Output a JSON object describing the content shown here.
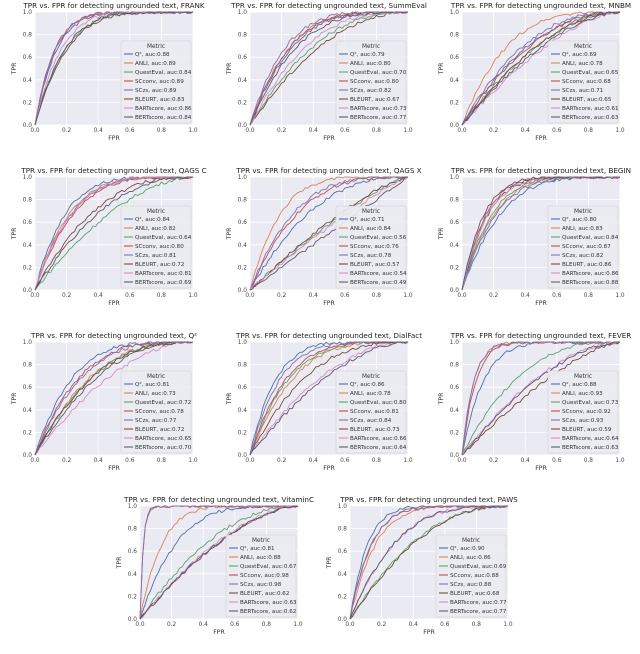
{
  "metric_label": "Metric",
  "colors": {
    "Q²": "#4c72b0",
    "ANLI": "#dd8452",
    "QuestEval": "#55a868",
    "SCconv": "#c44e52",
    "SCzs": "#8172b3",
    "BLEURT": "#7a4b3a",
    "BARTscore": "#da8bc3",
    "BERTscore": "#5a5a6e"
  },
  "chart_data": [
    {
      "type": "line",
      "title": "TPR vs. FPR for detecting ungrounded text, FRANK",
      "xlabel": "FPR",
      "ylabel": "TPR",
      "xlim": [
        0,
        1
      ],
      "ylim": [
        0,
        1
      ],
      "xticks": [
        "0.0",
        "0.2",
        "0.4",
        "0.6",
        "0.8",
        "1.0"
      ],
      "yticks": [
        "0.0",
        "0.2",
        "0.4",
        "0.6",
        "0.8",
        "1.0"
      ],
      "grid": true,
      "legend": "lower-right",
      "series": [
        {
          "name": "Q²",
          "label": "Q², auc:0.88",
          "auc": 0.88
        },
        {
          "name": "ANLI",
          "label": "ANLI, auc:0.89",
          "auc": 0.89
        },
        {
          "name": "QuestEval",
          "label": "QuestEval, auc:0.84",
          "auc": 0.84
        },
        {
          "name": "SCconv",
          "label": "SCconv, auc:0.89",
          "auc": 0.89
        },
        {
          "name": "SCzs",
          "label": "SCzs, auc:0.89",
          "auc": 0.89
        },
        {
          "name": "BLEURT",
          "label": "BLEURT, auc:0.83",
          "auc": 0.83
        },
        {
          "name": "BARTscore",
          "label": "BARTscore, auc:0.86",
          "auc": 0.86
        },
        {
          "name": "BERTscore",
          "label": "BERTscore, auc:0.84",
          "auc": 0.84
        }
      ]
    },
    {
      "type": "line",
      "title": "TPR vs. FPR for detecting ungrounded text, SummEval",
      "xlabel": "FPR",
      "ylabel": "TPR",
      "xlim": [
        0,
        1
      ],
      "ylim": [
        0,
        1
      ],
      "xticks": [
        "0.0",
        "0.2",
        "0.4",
        "0.6",
        "0.8",
        "1.0"
      ],
      "yticks": [
        "0.0",
        "0.2",
        "0.4",
        "0.6",
        "0.8",
        "1.0"
      ],
      "grid": true,
      "legend": "lower-right",
      "series": [
        {
          "name": "Q²",
          "label": "Q², auc:0.79",
          "auc": 0.79
        },
        {
          "name": "ANLI",
          "label": "ANLI, auc:0.80",
          "auc": 0.8
        },
        {
          "name": "QuestEval",
          "label": "QuestEval, auc:0.70",
          "auc": 0.7
        },
        {
          "name": "SCconv",
          "label": "SCconv, auc:0.80",
          "auc": 0.8
        },
        {
          "name": "SCzs",
          "label": "SCzs, auc:0.82",
          "auc": 0.82
        },
        {
          "name": "BLEURT",
          "label": "BLEURT, auc:0.67",
          "auc": 0.67
        },
        {
          "name": "BARTscore",
          "label": "BARTscore, auc:0.73",
          "auc": 0.73
        },
        {
          "name": "BERTscore",
          "label": "BERTscore, auc:0.77",
          "auc": 0.77
        }
      ]
    },
    {
      "type": "line",
      "title": "TPR vs. FPR for detecting ungrounded text, MNBM",
      "xlabel": "FPR",
      "ylabel": "TPR",
      "xlim": [
        0,
        1
      ],
      "ylim": [
        0,
        1
      ],
      "xticks": [
        "0.0",
        "0.2",
        "0.4",
        "0.6",
        "0.8",
        "1.0"
      ],
      "yticks": [
        "0.0",
        "0.2",
        "0.4",
        "0.6",
        "0.8",
        "1.0"
      ],
      "grid": true,
      "legend": "lower-right",
      "series": [
        {
          "name": "Q²",
          "label": "Q², auc:0.69",
          "auc": 0.69
        },
        {
          "name": "ANLI",
          "label": "ANLI, auc:0.78",
          "auc": 0.78
        },
        {
          "name": "QuestEval",
          "label": "QuestEval, auc:0.65",
          "auc": 0.65
        },
        {
          "name": "SCconv",
          "label": "SCconv, auc:0.68",
          "auc": 0.68
        },
        {
          "name": "SCzs",
          "label": "SCzs, auc:0.71",
          "auc": 0.71
        },
        {
          "name": "BLEURT",
          "label": "BLEURT, auc:0.65",
          "auc": 0.65
        },
        {
          "name": "BARTscore",
          "label": "BARTscore, auc:0.61",
          "auc": 0.61
        },
        {
          "name": "BERTscore",
          "label": "BERTscore, auc:0.63",
          "auc": 0.63
        }
      ]
    },
    {
      "type": "line",
      "title": "TPR vs. FPR for detecting ungrounded text, QAGS C",
      "xlabel": "FPR",
      "ylabel": "TPR",
      "xlim": [
        0,
        1
      ],
      "ylim": [
        0,
        1
      ],
      "xticks": [
        "0.0",
        "0.2",
        "0.4",
        "0.6",
        "0.8",
        "1.0"
      ],
      "yticks": [
        "0.0",
        "0.2",
        "0.4",
        "0.6",
        "0.8",
        "1.0"
      ],
      "grid": true,
      "legend": "lower-right",
      "series": [
        {
          "name": "Q²",
          "label": "Q², auc:0.84",
          "auc": 0.84
        },
        {
          "name": "ANLI",
          "label": "ANLI, auc:0.82",
          "auc": 0.82
        },
        {
          "name": "QuestEval",
          "label": "QuestEval, auc:0.64",
          "auc": 0.64
        },
        {
          "name": "SCconv",
          "label": "SCconv, auc:0.80",
          "auc": 0.8
        },
        {
          "name": "SCzs",
          "label": "SCzs, auc:0.81",
          "auc": 0.81
        },
        {
          "name": "BLEURT",
          "label": "BLEURT, auc:0.72",
          "auc": 0.72
        },
        {
          "name": "BARTscore",
          "label": "BARTscore, auc:0.81",
          "auc": 0.81
        },
        {
          "name": "BERTscore",
          "label": "BERTscore, auc:0.69",
          "auc": 0.69
        }
      ]
    },
    {
      "type": "line",
      "title": "TPR vs. FPR for detecting ungrounded text, QAGS X",
      "xlabel": "FPR",
      "ylabel": "TPR",
      "xlim": [
        0,
        1
      ],
      "ylim": [
        0,
        1
      ],
      "xticks": [
        "0.0",
        "0.2",
        "0.4",
        "0.6",
        "0.8",
        "1.0"
      ],
      "yticks": [
        "0.0",
        "0.2",
        "0.4",
        "0.6",
        "0.8",
        "1.0"
      ],
      "grid": true,
      "legend": "lower-right",
      "series": [
        {
          "name": "Q²",
          "label": "Q², auc:0.71",
          "auc": 0.71
        },
        {
          "name": "ANLI",
          "label": "ANLI, auc:0.84",
          "auc": 0.84
        },
        {
          "name": "QuestEval",
          "label": "QuestEval, auc:0.56",
          "auc": 0.56
        },
        {
          "name": "SCconv",
          "label": "SCconv, auc:0.76",
          "auc": 0.76
        },
        {
          "name": "SCzs",
          "label": "SCzs, auc:0.78",
          "auc": 0.78
        },
        {
          "name": "BLEURT",
          "label": "BLEURT, auc:0.57",
          "auc": 0.57
        },
        {
          "name": "BARTscore",
          "label": "BARTscore, auc:0.54",
          "auc": 0.54
        },
        {
          "name": "BERTscore",
          "label": "BERTscore, auc:0.49",
          "auc": 0.49
        }
      ]
    },
    {
      "type": "line",
      "title": "TPR vs. FPR for detecting ungrounded text, BEGIN",
      "xlabel": "FPR",
      "ylabel": "TPR",
      "xlim": [
        0,
        1
      ],
      "ylim": [
        0,
        1
      ],
      "xticks": [
        "0.0",
        "0.2",
        "0.4",
        "0.6",
        "0.8",
        "1.0"
      ],
      "yticks": [
        "0.0",
        "0.2",
        "0.4",
        "0.6",
        "0.8",
        "1.0"
      ],
      "grid": true,
      "legend": "lower-right",
      "series": [
        {
          "name": "Q²",
          "label": "Q², auc:0.80",
          "auc": 0.8
        },
        {
          "name": "ANLI",
          "label": "ANLI, auc:0.83",
          "auc": 0.83
        },
        {
          "name": "QuestEval",
          "label": "QuestEval, auc:0.84",
          "auc": 0.84
        },
        {
          "name": "SCconv",
          "label": "SCconv, auc:0.87",
          "auc": 0.87
        },
        {
          "name": "SCzs",
          "label": "SCzs, auc:0.82",
          "auc": 0.82
        },
        {
          "name": "BLEURT",
          "label": "BLEURT, auc:0.86",
          "auc": 0.86
        },
        {
          "name": "BARTscore",
          "label": "BARTscore, auc:0.86",
          "auc": 0.86
        },
        {
          "name": "BERTscore",
          "label": "BERTscore, auc:0.88",
          "auc": 0.88
        }
      ]
    },
    {
      "type": "line",
      "title": "TPR vs. FPR for detecting ungrounded text, Q²",
      "xlabel": "FPR",
      "ylabel": "TPR",
      "xlim": [
        0,
        1
      ],
      "ylim": [
        0,
        1
      ],
      "xticks": [
        "0.0",
        "0.2",
        "0.4",
        "0.6",
        "0.8",
        "1.0"
      ],
      "yticks": [
        "0.0",
        "0.2",
        "0.4",
        "0.6",
        "0.8",
        "1.0"
      ],
      "grid": true,
      "legend": "lower-right",
      "series": [
        {
          "name": "Q²",
          "label": "Q², auc:0.81",
          "auc": 0.81
        },
        {
          "name": "ANLI",
          "label": "ANLI, auc:0.73",
          "auc": 0.73
        },
        {
          "name": "QuestEval",
          "label": "QuestEval, auc:0.72",
          "auc": 0.72
        },
        {
          "name": "SCconv",
          "label": "SCconv, auc:0.78",
          "auc": 0.78
        },
        {
          "name": "SCzs",
          "label": "SCzs, auc:0.77",
          "auc": 0.77
        },
        {
          "name": "BLEURT",
          "label": "BLEURT, auc:0.72",
          "auc": 0.72
        },
        {
          "name": "BARTscore",
          "label": "BARTscore, auc:0.65",
          "auc": 0.65
        },
        {
          "name": "BERTscore",
          "label": "BERTscore, auc:0.70",
          "auc": 0.7
        }
      ]
    },
    {
      "type": "line",
      "title": "TPR vs. FPR for detecting ungrounded text, DialFact",
      "xlabel": "FPR",
      "ylabel": "TPR",
      "xlim": [
        0,
        1
      ],
      "ylim": [
        0,
        1
      ],
      "xticks": [
        "0.0",
        "0.2",
        "0.4",
        "0.6",
        "0.8",
        "1.0"
      ],
      "yticks": [
        "0.0",
        "0.2",
        "0.4",
        "0.6",
        "0.8",
        "1.0"
      ],
      "grid": true,
      "legend": "lower-right",
      "series": [
        {
          "name": "Q²",
          "label": "Q², auc:0.86",
          "auc": 0.86
        },
        {
          "name": "ANLI",
          "label": "ANLI, auc:0.78",
          "auc": 0.78
        },
        {
          "name": "QuestEval",
          "label": "QuestEval, auc:0.80",
          "auc": 0.8
        },
        {
          "name": "SCconv",
          "label": "SCconv, auc:0.81",
          "auc": 0.81
        },
        {
          "name": "SCzs",
          "label": "SCzs, auc:0.84",
          "auc": 0.84
        },
        {
          "name": "BLEURT",
          "label": "BLEURT, auc:0.73",
          "auc": 0.73
        },
        {
          "name": "BARTscore",
          "label": "BARTscore, auc:0.66",
          "auc": 0.66
        },
        {
          "name": "BERTscore",
          "label": "BERTscore, auc:0.64",
          "auc": 0.64
        }
      ]
    },
    {
      "type": "line",
      "title": "TPR vs. FPR for detecting ungrounded text, FEVER",
      "xlabel": "FPR",
      "ylabel": "TPR",
      "xlim": [
        0,
        1
      ],
      "ylim": [
        0,
        1
      ],
      "xticks": [
        "0.0",
        "0.2",
        "0.4",
        "0.6",
        "0.8",
        "1.0"
      ],
      "yticks": [
        "0.0",
        "0.2",
        "0.4",
        "0.6",
        "0.8",
        "1.0"
      ],
      "grid": true,
      "legend": "lower-right",
      "series": [
        {
          "name": "Q²",
          "label": "Q², auc:0.88",
          "auc": 0.88
        },
        {
          "name": "ANLI",
          "label": "ANLI, auc:0.93",
          "auc": 0.93
        },
        {
          "name": "QuestEval",
          "label": "QuestEval, auc:0.73",
          "auc": 0.73
        },
        {
          "name": "SCconv",
          "label": "SCconv, auc:0.92",
          "auc": 0.92
        },
        {
          "name": "SCzs",
          "label": "SCzs, auc:0.93",
          "auc": 0.93
        },
        {
          "name": "BLEURT",
          "label": "BLEURT, auc:0.59",
          "auc": 0.59
        },
        {
          "name": "BARTscore",
          "label": "BARTscore, auc:0.64",
          "auc": 0.64
        },
        {
          "name": "BERTscore",
          "label": "BERTscore, auc:0.63",
          "auc": 0.63
        }
      ]
    },
    {
      "type": "line",
      "title": "TPR vs. FPR for detecting ungrounded text, VitaminC",
      "xlabel": "FPR",
      "ylabel": "TPR",
      "xlim": [
        0,
        1
      ],
      "ylim": [
        0,
        1
      ],
      "xticks": [
        "0.0",
        "0.2",
        "0.4",
        "0.6",
        "0.8",
        "1.0"
      ],
      "yticks": [
        "0.0",
        "0.2",
        "0.4",
        "0.6",
        "0.8",
        "1.0"
      ],
      "grid": true,
      "legend": "lower-right",
      "series": [
        {
          "name": "Q²",
          "label": "Q², auc:0.81",
          "auc": 0.81
        },
        {
          "name": "ANLI",
          "label": "ANLI, auc:0.88",
          "auc": 0.88
        },
        {
          "name": "QuestEval",
          "label": "QuestEval, auc:0.67",
          "auc": 0.67
        },
        {
          "name": "SCconv",
          "label": "SCconv, auc:0.98",
          "auc": 0.98
        },
        {
          "name": "SCzs",
          "label": "SCzs, auc:0.98",
          "auc": 0.98
        },
        {
          "name": "BLEURT",
          "label": "BLEURT, auc:0.62",
          "auc": 0.62
        },
        {
          "name": "BARTscore",
          "label": "BARTscore, auc:0.63",
          "auc": 0.63
        },
        {
          "name": "BERTscore",
          "label": "BERTscore, auc:0.62",
          "auc": 0.62
        }
      ]
    },
    {
      "type": "line",
      "title": "TPR vs. FPR for detecting ungrounded text, PAWS",
      "xlabel": "FPR",
      "ylabel": "TPR",
      "xlim": [
        0,
        1
      ],
      "ylim": [
        0,
        1
      ],
      "xticks": [
        "0.0",
        "0.2",
        "0.4",
        "0.6",
        "0.8",
        "1.0"
      ],
      "yticks": [
        "0.0",
        "0.2",
        "0.4",
        "0.6",
        "0.8",
        "1.0"
      ],
      "grid": true,
      "legend": "lower-right",
      "series": [
        {
          "name": "Q²",
          "label": "Q², auc:0.90",
          "auc": 0.9
        },
        {
          "name": "ANLI",
          "label": "ANLI, auc:0.86",
          "auc": 0.86
        },
        {
          "name": "QuestEval",
          "label": "QuestEval, auc:0.69",
          "auc": 0.69
        },
        {
          "name": "SCconv",
          "label": "SCconv, auc:0.88",
          "auc": 0.88
        },
        {
          "name": "SCzs",
          "label": "SCzs, auc:0.88",
          "auc": 0.88
        },
        {
          "name": "BLEURT",
          "label": "BLEURT, auc:0.68",
          "auc": 0.68
        },
        {
          "name": "BARTscore",
          "label": "BARTscore, auc:0.77",
          "auc": 0.77
        },
        {
          "name": "BERTscore",
          "label": "BERTscore, auc:0.77",
          "auc": 0.77
        }
      ]
    }
  ]
}
